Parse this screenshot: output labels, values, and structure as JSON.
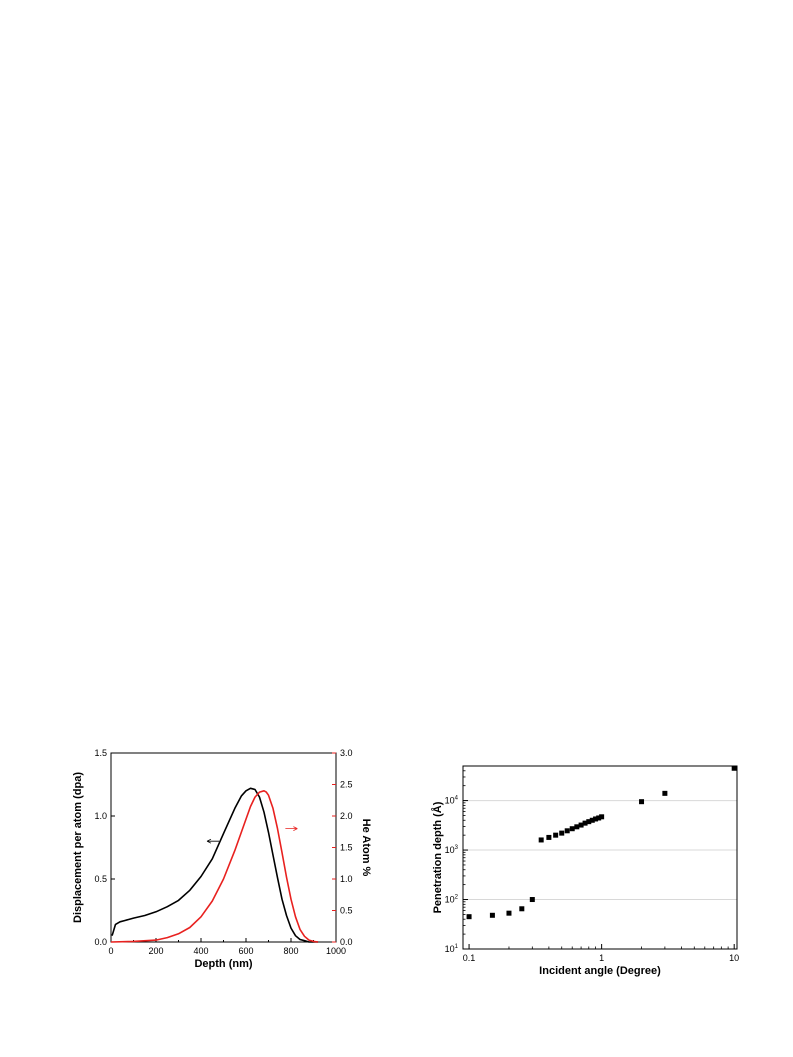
{
  "chart_data": [
    {
      "type": "line",
      "title": "",
      "xlabel": "Depth (nm)",
      "ylabel": "Displacement per atom (dpa)",
      "y2label": "He Atom %",
      "xlim": [
        0,
        1000
      ],
      "ylim": [
        0,
        1.5
      ],
      "y2lim": [
        0,
        3.0
      ],
      "x_ticks": [
        "0",
        "200",
        "400",
        "600",
        "800",
        "1000"
      ],
      "y_ticks": [
        "0.0",
        "0.5",
        "1.0",
        "1.5"
      ],
      "y2_ticks": [
        "0.0",
        "0.5",
        "1.0",
        "1.5",
        "2.0",
        "2.5",
        "3.0"
      ],
      "grid": false,
      "series": [
        {
          "axis": "left",
          "color": "#000000",
          "x": [
            5,
            20,
            40,
            60,
            100,
            150,
            200,
            250,
            300,
            350,
            400,
            450,
            500,
            550,
            580,
            600,
            620,
            640,
            660,
            680,
            700,
            720,
            740,
            760,
            780,
            800,
            820,
            840,
            860,
            880,
            900,
            920
          ],
          "y": [
            0.05,
            0.14,
            0.16,
            0.17,
            0.19,
            0.21,
            0.24,
            0.28,
            0.33,
            0.41,
            0.52,
            0.66,
            0.86,
            1.06,
            1.16,
            1.2,
            1.22,
            1.21,
            1.15,
            1.03,
            0.87,
            0.69,
            0.51,
            0.34,
            0.21,
            0.11,
            0.05,
            0.02,
            0.01,
            0.0,
            0.0,
            0.0
          ]
        },
        {
          "axis": "right",
          "color": "#e8211f",
          "x": [
            0,
            100,
            200,
            250,
            300,
            350,
            400,
            450,
            500,
            550,
            600,
            620,
            640,
            660,
            680,
            690,
            700,
            720,
            740,
            760,
            780,
            800,
            820,
            840,
            860,
            880,
            900,
            920
          ],
          "y": [
            0.0,
            0.01,
            0.03,
            0.07,
            0.13,
            0.23,
            0.4,
            0.65,
            1.0,
            1.45,
            1.95,
            2.15,
            2.3,
            2.38,
            2.4,
            2.38,
            2.33,
            2.12,
            1.8,
            1.42,
            1.03,
            0.68,
            0.4,
            0.2,
            0.09,
            0.03,
            0.01,
            0.0
          ]
        }
      ]
    },
    {
      "type": "scatter",
      "title": "",
      "xlabel": "Incident angle (Degree)",
      "ylabel": "Penetration depth (Å)",
      "x_scale": "log",
      "y_scale": "log",
      "xlim": [
        0.09,
        10.5
      ],
      "ylim": [
        10,
        50000
      ],
      "x_ticks": [
        "0.1",
        "1",
        "10"
      ],
      "y_ticks": [
        {
          "base": "10",
          "exp": "1"
        },
        {
          "base": "10",
          "exp": "2"
        },
        {
          "base": "10",
          "exp": "3"
        },
        {
          "base": "10",
          "exp": "4"
        }
      ],
      "grid": "horizontal",
      "marker_color": "#000000",
      "points": [
        [
          0.1,
          45
        ],
        [
          0.15,
          48
        ],
        [
          0.2,
          53
        ],
        [
          0.25,
          65
        ],
        [
          0.3,
          100
        ],
        [
          0.35,
          1600
        ],
        [
          0.4,
          1800
        ],
        [
          0.45,
          2000
        ],
        [
          0.5,
          2200
        ],
        [
          0.55,
          2450
        ],
        [
          0.6,
          2700
        ],
        [
          0.65,
          2950
        ],
        [
          0.7,
          3200
        ],
        [
          0.75,
          3500
        ],
        [
          0.8,
          3750
        ],
        [
          0.85,
          4000
        ],
        [
          0.9,
          4250
        ],
        [
          0.95,
          4450
        ],
        [
          1.0,
          4700
        ],
        [
          2.0,
          9500
        ],
        [
          3.0,
          14000
        ],
        [
          10.0,
          45000
        ]
      ]
    }
  ]
}
